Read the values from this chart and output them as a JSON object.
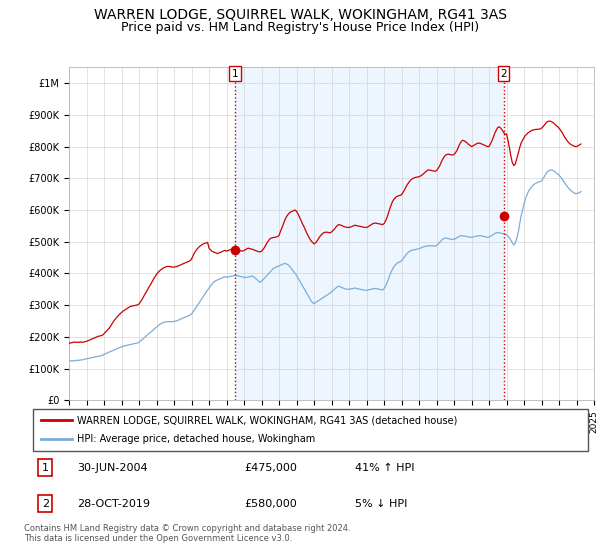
{
  "title": "WARREN LODGE, SQUIRREL WALK, WOKINGHAM, RG41 3AS",
  "subtitle": "Price paid vs. HM Land Registry's House Price Index (HPI)",
  "title_fontsize": 10,
  "subtitle_fontsize": 9,
  "legend_line1": "WARREN LODGE, SQUIRREL WALK, WOKINGHAM, RG41 3AS (detached house)",
  "legend_line2": "HPI: Average price, detached house, Wokingham",
  "footnote": "Contains HM Land Registry data © Crown copyright and database right 2024.\nThis data is licensed under the Open Government Licence v3.0.",
  "sale1_label": "1",
  "sale1_date": "30-JUN-2004",
  "sale1_price": "£475,000",
  "sale1_hpi": "41% ↑ HPI",
  "sale1_x": 2004.5,
  "sale1_y": 475000,
  "sale2_label": "2",
  "sale2_date": "28-OCT-2019",
  "sale2_price": "£580,000",
  "sale2_hpi": "5% ↓ HPI",
  "sale2_x": 2019.83,
  "sale2_y": 580000,
  "red_color": "#cc0000",
  "blue_color": "#7aaddb",
  "shade_color": "#ddeeff",
  "ylim_min": 0,
  "ylim_max": 1050000,
  "yticks": [
    0,
    100000,
    200000,
    300000,
    400000,
    500000,
    600000,
    700000,
    800000,
    900000,
    1000000
  ],
  "ytick_labels": [
    "£0",
    "£100K",
    "£200K",
    "£300K",
    "£400K",
    "£500K",
    "£600K",
    "£700K",
    "£800K",
    "£900K",
    "£1M"
  ],
  "hpi_years": [
    1995.0,
    1995.08,
    1995.17,
    1995.25,
    1995.33,
    1995.42,
    1995.5,
    1995.58,
    1995.67,
    1995.75,
    1995.83,
    1995.92,
    1996.0,
    1996.08,
    1996.17,
    1996.25,
    1996.33,
    1996.42,
    1996.5,
    1996.58,
    1996.67,
    1996.75,
    1996.83,
    1996.92,
    1997.0,
    1997.08,
    1997.17,
    1997.25,
    1997.33,
    1997.42,
    1997.5,
    1997.58,
    1997.67,
    1997.75,
    1997.83,
    1997.92,
    1998.0,
    1998.08,
    1998.17,
    1998.25,
    1998.33,
    1998.42,
    1998.5,
    1998.58,
    1998.67,
    1998.75,
    1998.83,
    1998.92,
    1999.0,
    1999.08,
    1999.17,
    1999.25,
    1999.33,
    1999.42,
    1999.5,
    1999.58,
    1999.67,
    1999.75,
    1999.83,
    1999.92,
    2000.0,
    2000.08,
    2000.17,
    2000.25,
    2000.33,
    2000.42,
    2000.5,
    2000.58,
    2000.67,
    2000.75,
    2000.83,
    2000.92,
    2001.0,
    2001.08,
    2001.17,
    2001.25,
    2001.33,
    2001.42,
    2001.5,
    2001.58,
    2001.67,
    2001.75,
    2001.83,
    2001.92,
    2002.0,
    2002.08,
    2002.17,
    2002.25,
    2002.33,
    2002.42,
    2002.5,
    2002.58,
    2002.67,
    2002.75,
    2002.83,
    2002.92,
    2003.0,
    2003.08,
    2003.17,
    2003.25,
    2003.33,
    2003.42,
    2003.5,
    2003.58,
    2003.67,
    2003.75,
    2003.83,
    2003.92,
    2004.0,
    2004.08,
    2004.17,
    2004.25,
    2004.33,
    2004.42,
    2004.5,
    2004.58,
    2004.67,
    2004.75,
    2004.83,
    2004.92,
    2005.0,
    2005.08,
    2005.17,
    2005.25,
    2005.33,
    2005.42,
    2005.5,
    2005.58,
    2005.67,
    2005.75,
    2005.83,
    2005.92,
    2006.0,
    2006.08,
    2006.17,
    2006.25,
    2006.33,
    2006.42,
    2006.5,
    2006.58,
    2006.67,
    2006.75,
    2006.83,
    2006.92,
    2007.0,
    2007.08,
    2007.17,
    2007.25,
    2007.33,
    2007.42,
    2007.5,
    2007.58,
    2007.67,
    2007.75,
    2007.83,
    2007.92,
    2008.0,
    2008.08,
    2008.17,
    2008.25,
    2008.33,
    2008.42,
    2008.5,
    2008.58,
    2008.67,
    2008.75,
    2008.83,
    2008.92,
    2009.0,
    2009.08,
    2009.17,
    2009.25,
    2009.33,
    2009.42,
    2009.5,
    2009.58,
    2009.67,
    2009.75,
    2009.83,
    2009.92,
    2010.0,
    2010.08,
    2010.17,
    2010.25,
    2010.33,
    2010.42,
    2010.5,
    2010.58,
    2010.67,
    2010.75,
    2010.83,
    2010.92,
    2011.0,
    2011.08,
    2011.17,
    2011.25,
    2011.33,
    2011.42,
    2011.5,
    2011.58,
    2011.67,
    2011.75,
    2011.83,
    2011.92,
    2012.0,
    2012.08,
    2012.17,
    2012.25,
    2012.33,
    2012.42,
    2012.5,
    2012.58,
    2012.67,
    2012.75,
    2012.83,
    2012.92,
    2013.0,
    2013.08,
    2013.17,
    2013.25,
    2013.33,
    2013.42,
    2013.5,
    2013.58,
    2013.67,
    2013.75,
    2013.83,
    2013.92,
    2014.0,
    2014.08,
    2014.17,
    2014.25,
    2014.33,
    2014.42,
    2014.5,
    2014.58,
    2014.67,
    2014.75,
    2014.83,
    2014.92,
    2015.0,
    2015.08,
    2015.17,
    2015.25,
    2015.33,
    2015.42,
    2015.5,
    2015.58,
    2015.67,
    2015.75,
    2015.83,
    2015.92,
    2016.0,
    2016.08,
    2016.17,
    2016.25,
    2016.33,
    2016.42,
    2016.5,
    2016.58,
    2016.67,
    2016.75,
    2016.83,
    2016.92,
    2017.0,
    2017.08,
    2017.17,
    2017.25,
    2017.33,
    2017.42,
    2017.5,
    2017.58,
    2017.67,
    2017.75,
    2017.83,
    2017.92,
    2018.0,
    2018.08,
    2018.17,
    2018.25,
    2018.33,
    2018.42,
    2018.5,
    2018.58,
    2018.67,
    2018.75,
    2018.83,
    2018.92,
    2019.0,
    2019.08,
    2019.17,
    2019.25,
    2019.33,
    2019.42,
    2019.5,
    2019.58,
    2019.67,
    2019.75,
    2019.83,
    2019.92,
    2020.0,
    2020.08,
    2020.17,
    2020.25,
    2020.33,
    2020.42,
    2020.5,
    2020.58,
    2020.67,
    2020.75,
    2020.83,
    2020.92,
    2021.0,
    2021.08,
    2021.17,
    2021.25,
    2021.33,
    2021.42,
    2021.5,
    2021.58,
    2021.67,
    2021.75,
    2021.83,
    2021.92,
    2022.0,
    2022.08,
    2022.17,
    2022.25,
    2022.33,
    2022.42,
    2022.5,
    2022.58,
    2022.67,
    2022.75,
    2022.83,
    2022.92,
    2023.0,
    2023.08,
    2023.17,
    2023.25,
    2023.33,
    2023.42,
    2023.5,
    2023.58,
    2023.67,
    2023.75,
    2023.83,
    2023.92,
    2024.0,
    2024.08,
    2024.17,
    2024.25
  ],
  "hpi_values": [
    125000,
    124000,
    125000,
    124000,
    126000,
    125000,
    127000,
    126000,
    128000,
    127000,
    129000,
    130000,
    131000,
    132000,
    133000,
    134000,
    135000,
    136000,
    137000,
    138000,
    139000,
    140000,
    141000,
    142000,
    145000,
    147000,
    149000,
    151000,
    153000,
    155000,
    157000,
    159000,
    161000,
    163000,
    165000,
    167000,
    168000,
    170000,
    172000,
    173000,
    174000,
    175000,
    176000,
    177000,
    178000,
    179000,
    180000,
    181000,
    183000,
    187000,
    191000,
    195000,
    199000,
    203000,
    207000,
    211000,
    215000,
    219000,
    223000,
    227000,
    231000,
    235000,
    239000,
    242000,
    244000,
    246000,
    247000,
    248000,
    248000,
    248000,
    248000,
    248000,
    249000,
    250000,
    251000,
    253000,
    255000,
    257000,
    259000,
    261000,
    263000,
    265000,
    267000,
    269000,
    272000,
    278000,
    285000,
    292000,
    299000,
    306000,
    313000,
    320000,
    327000,
    334000,
    341000,
    348000,
    354000,
    360000,
    366000,
    372000,
    375000,
    378000,
    380000,
    382000,
    384000,
    386000,
    388000,
    390000,
    388000,
    389000,
    390000,
    391000,
    392000,
    393000,
    394000,
    393000,
    392000,
    391000,
    390000,
    389000,
    388000,
    387000,
    388000,
    389000,
    390000,
    391000,
    392000,
    388000,
    384000,
    380000,
    376000,
    372000,
    375000,
    380000,
    385000,
    390000,
    395000,
    400000,
    405000,
    410000,
    415000,
    418000,
    420000,
    422000,
    424000,
    426000,
    428000,
    430000,
    432000,
    430000,
    428000,
    424000,
    418000,
    412000,
    406000,
    400000,
    394000,
    386000,
    378000,
    370000,
    362000,
    354000,
    346000,
    338000,
    330000,
    322000,
    314000,
    308000,
    305000,
    308000,
    311000,
    314000,
    317000,
    320000,
    323000,
    326000,
    329000,
    332000,
    335000,
    338000,
    342000,
    346000,
    350000,
    354000,
    358000,
    360000,
    358000,
    356000,
    354000,
    352000,
    351000,
    350000,
    350000,
    351000,
    352000,
    353000,
    354000,
    353000,
    352000,
    351000,
    350000,
    349000,
    348000,
    347000,
    347000,
    348000,
    349000,
    350000,
    351000,
    352000,
    353000,
    352000,
    351000,
    350000,
    349000,
    348000,
    352000,
    360000,
    370000,
    382000,
    394000,
    406000,
    415000,
    422000,
    428000,
    432000,
    435000,
    437000,
    440000,
    446000,
    452000,
    458000,
    464000,
    468000,
    471000,
    473000,
    474000,
    475000,
    476000,
    477000,
    478000,
    480000,
    482000,
    484000,
    485000,
    486000,
    487000,
    487000,
    487000,
    487000,
    487000,
    486000,
    488000,
    492000,
    497000,
    502000,
    507000,
    510000,
    512000,
    511000,
    510000,
    509000,
    508000,
    507000,
    508000,
    510000,
    513000,
    516000,
    518000,
    519000,
    519000,
    518000,
    517000,
    516000,
    515000,
    514000,
    514000,
    515000,
    516000,
    517000,
    518000,
    519000,
    519000,
    518000,
    517000,
    516000,
    515000,
    514000,
    515000,
    517000,
    520000,
    523000,
    526000,
    528000,
    529000,
    528000,
    527000,
    526000,
    525000,
    524000,
    522000,
    518000,
    512000,
    505000,
    497000,
    490000,
    495000,
    510000,
    530000,
    555000,
    580000,
    600000,
    618000,
    635000,
    648000,
    658000,
    666000,
    672000,
    677000,
    681000,
    684000,
    686000,
    688000,
    689000,
    692000,
    698000,
    706000,
    714000,
    720000,
    724000,
    726000,
    726000,
    724000,
    721000,
    718000,
    714000,
    710000,
    705000,
    699000,
    692000,
    685000,
    678000,
    672000,
    667000,
    662000,
    658000,
    655000,
    652000,
    652000,
    653000,
    655000,
    658000
  ],
  "red_years": [
    1995.0,
    1995.08,
    1995.17,
    1995.25,
    1995.33,
    1995.42,
    1995.5,
    1995.58,
    1995.67,
    1995.75,
    1995.83,
    1995.92,
    1996.0,
    1996.08,
    1996.17,
    1996.25,
    1996.33,
    1996.42,
    1996.5,
    1996.58,
    1996.67,
    1996.75,
    1996.83,
    1996.92,
    1997.0,
    1997.08,
    1997.17,
    1997.25,
    1997.33,
    1997.42,
    1997.5,
    1997.58,
    1997.67,
    1997.75,
    1997.83,
    1997.92,
    1998.0,
    1998.08,
    1998.17,
    1998.25,
    1998.33,
    1998.42,
    1998.5,
    1998.58,
    1998.67,
    1998.75,
    1998.83,
    1998.92,
    1999.0,
    1999.08,
    1999.17,
    1999.25,
    1999.33,
    1999.42,
    1999.5,
    1999.58,
    1999.67,
    1999.75,
    1999.83,
    1999.92,
    2000.0,
    2000.08,
    2000.17,
    2000.25,
    2000.33,
    2000.42,
    2000.5,
    2000.58,
    2000.67,
    2000.75,
    2000.83,
    2000.92,
    2001.0,
    2001.08,
    2001.17,
    2001.25,
    2001.33,
    2001.42,
    2001.5,
    2001.58,
    2001.67,
    2001.75,
    2001.83,
    2001.92,
    2002.0,
    2002.08,
    2002.17,
    2002.25,
    2002.33,
    2002.42,
    2002.5,
    2002.58,
    2002.67,
    2002.75,
    2002.83,
    2002.92,
    2003.0,
    2003.08,
    2003.17,
    2003.25,
    2003.33,
    2003.42,
    2003.5,
    2003.58,
    2003.67,
    2003.75,
    2003.83,
    2003.92,
    2004.0,
    2004.08,
    2004.17,
    2004.25,
    2004.33,
    2004.42,
    2004.5,
    2004.58,
    2004.67,
    2004.75,
    2004.83,
    2004.92,
    2005.0,
    2005.08,
    2005.17,
    2005.25,
    2005.33,
    2005.42,
    2005.5,
    2005.58,
    2005.67,
    2005.75,
    2005.83,
    2005.92,
    2006.0,
    2006.08,
    2006.17,
    2006.25,
    2006.33,
    2006.42,
    2006.5,
    2006.58,
    2006.67,
    2006.75,
    2006.83,
    2006.92,
    2007.0,
    2007.08,
    2007.17,
    2007.25,
    2007.33,
    2007.42,
    2007.5,
    2007.58,
    2007.67,
    2007.75,
    2007.83,
    2007.92,
    2008.0,
    2008.08,
    2008.17,
    2008.25,
    2008.33,
    2008.42,
    2008.5,
    2008.58,
    2008.67,
    2008.75,
    2008.83,
    2008.92,
    2009.0,
    2009.08,
    2009.17,
    2009.25,
    2009.33,
    2009.42,
    2009.5,
    2009.58,
    2009.67,
    2009.75,
    2009.83,
    2009.92,
    2010.0,
    2010.08,
    2010.17,
    2010.25,
    2010.33,
    2010.42,
    2010.5,
    2010.58,
    2010.67,
    2010.75,
    2010.83,
    2010.92,
    2011.0,
    2011.08,
    2011.17,
    2011.25,
    2011.33,
    2011.42,
    2011.5,
    2011.58,
    2011.67,
    2011.75,
    2011.83,
    2011.92,
    2012.0,
    2012.08,
    2012.17,
    2012.25,
    2012.33,
    2012.42,
    2012.5,
    2012.58,
    2012.67,
    2012.75,
    2012.83,
    2012.92,
    2013.0,
    2013.08,
    2013.17,
    2013.25,
    2013.33,
    2013.42,
    2013.5,
    2013.58,
    2013.67,
    2013.75,
    2013.83,
    2013.92,
    2014.0,
    2014.08,
    2014.17,
    2014.25,
    2014.33,
    2014.42,
    2014.5,
    2014.58,
    2014.67,
    2014.75,
    2014.83,
    2014.92,
    2015.0,
    2015.08,
    2015.17,
    2015.25,
    2015.33,
    2015.42,
    2015.5,
    2015.58,
    2015.67,
    2015.75,
    2015.83,
    2015.92,
    2016.0,
    2016.08,
    2016.17,
    2016.25,
    2016.33,
    2016.42,
    2016.5,
    2016.58,
    2016.67,
    2016.75,
    2016.83,
    2016.92,
    2017.0,
    2017.08,
    2017.17,
    2017.25,
    2017.33,
    2017.42,
    2017.5,
    2017.58,
    2017.67,
    2017.75,
    2017.83,
    2017.92,
    2018.0,
    2018.08,
    2018.17,
    2018.25,
    2018.33,
    2018.42,
    2018.5,
    2018.58,
    2018.67,
    2018.75,
    2018.83,
    2018.92,
    2019.0,
    2019.08,
    2019.17,
    2019.25,
    2019.33,
    2019.42,
    2019.5,
    2019.58,
    2019.67,
    2019.75,
    2019.83,
    2019.92,
    2020.0,
    2020.08,
    2020.17,
    2020.25,
    2020.33,
    2020.42,
    2020.5,
    2020.58,
    2020.67,
    2020.75,
    2020.83,
    2020.92,
    2021.0,
    2021.08,
    2021.17,
    2021.25,
    2021.33,
    2021.42,
    2021.5,
    2021.58,
    2021.67,
    2021.75,
    2021.83,
    2021.92,
    2022.0,
    2022.08,
    2022.17,
    2022.25,
    2022.33,
    2022.42,
    2022.5,
    2022.58,
    2022.67,
    2022.75,
    2022.83,
    2022.92,
    2023.0,
    2023.08,
    2023.17,
    2023.25,
    2023.33,
    2023.42,
    2023.5,
    2023.58,
    2023.67,
    2023.75,
    2023.83,
    2023.92,
    2024.0,
    2024.08,
    2024.17,
    2024.25
  ],
  "red_values": [
    180000,
    181000,
    182000,
    183000,
    184000,
    183000,
    184000,
    183000,
    184000,
    183000,
    184000,
    185000,
    186000,
    188000,
    190000,
    192000,
    194000,
    196000,
    198000,
    200000,
    202000,
    203000,
    204000,
    206000,
    210000,
    215000,
    220000,
    225000,
    230000,
    238000,
    245000,
    252000,
    258000,
    263000,
    268000,
    273000,
    277000,
    281000,
    284000,
    287000,
    290000,
    293000,
    296000,
    297000,
    298000,
    299000,
    300000,
    301000,
    304000,
    310000,
    318000,
    326000,
    334000,
    342000,
    350000,
    358000,
    366000,
    374000,
    382000,
    390000,
    397000,
    403000,
    408000,
    412000,
    415000,
    418000,
    420000,
    422000,
    422000,
    422000,
    421000,
    420000,
    420000,
    421000,
    422000,
    424000,
    426000,
    428000,
    430000,
    432000,
    434000,
    436000,
    438000,
    440000,
    445000,
    455000,
    465000,
    472000,
    478000,
    483000,
    487000,
    490000,
    493000,
    495000,
    496000,
    498000,
    480000,
    475000,
    470000,
    468000,
    466000,
    464000,
    463000,
    465000,
    467000,
    469000,
    471000,
    473000,
    470000,
    472000,
    474000,
    476000,
    475000,
    474000,
    475000,
    474000,
    473000,
    472000,
    471000,
    471000,
    472000,
    475000,
    478000,
    480000,
    478000,
    477000,
    476000,
    474000,
    472000,
    470000,
    469000,
    468000,
    470000,
    475000,
    482000,
    490000,
    498000,
    505000,
    510000,
    512000,
    513000,
    514000,
    515000,
    516000,
    520000,
    532000,
    544000,
    556000,
    568000,
    578000,
    585000,
    590000,
    594000,
    596000,
    598000,
    600000,
    596000,
    588000,
    578000,
    568000,
    558000,
    548000,
    538000,
    528000,
    518000,
    510000,
    503000,
    498000,
    493000,
    496000,
    502000,
    509000,
    516000,
    522000,
    526000,
    529000,
    530000,
    530000,
    529000,
    528000,
    531000,
    535000,
    540000,
    546000,
    551000,
    554000,
    553000,
    551000,
    549000,
    547000,
    546000,
    545000,
    545000,
    546000,
    548000,
    550000,
    552000,
    551000,
    550000,
    549000,
    548000,
    547000,
    546000,
    545000,
    545000,
    547000,
    550000,
    553000,
    556000,
    558000,
    559000,
    558000,
    557000,
    556000,
    555000,
    554000,
    557000,
    565000,
    576000,
    590000,
    604000,
    618000,
    628000,
    635000,
    640000,
    643000,
    645000,
    646000,
    648000,
    655000,
    663000,
    672000,
    680000,
    687000,
    693000,
    697000,
    700000,
    702000,
    703000,
    704000,
    705000,
    707000,
    710000,
    714000,
    718000,
    722000,
    726000,
    726000,
    725000,
    724000,
    723000,
    722000,
    724000,
    730000,
    738000,
    748000,
    758000,
    766000,
    772000,
    775000,
    776000,
    775000,
    774000,
    773000,
    775000,
    780000,
    788000,
    798000,
    808000,
    816000,
    820000,
    818000,
    815000,
    811000,
    807000,
    803000,
    800000,
    802000,
    805000,
    808000,
    810000,
    811000,
    810000,
    808000,
    806000,
    804000,
    802000,
    800000,
    800000,
    808000,
    818000,
    830000,
    842000,
    852000,
    860000,
    862000,
    858000,
    852000,
    845000,
    838000,
    840000,
    820000,
    795000,
    770000,
    750000,
    740000,
    745000,
    760000,
    778000,
    796000,
    810000,
    820000,
    828000,
    835000,
    840000,
    844000,
    847000,
    850000,
    852000,
    853000,
    854000,
    854000,
    855000,
    855000,
    858000,
    862000,
    868000,
    874000,
    878000,
    880000,
    880000,
    878000,
    875000,
    871000,
    867000,
    863000,
    858000,
    852000,
    845000,
    837000,
    829000,
    822000,
    816000,
    811000,
    807000,
    804000,
    802000,
    800000,
    800000,
    802000,
    805000,
    808000
  ],
  "xlim_min": 1995,
  "xlim_max": 2025
}
